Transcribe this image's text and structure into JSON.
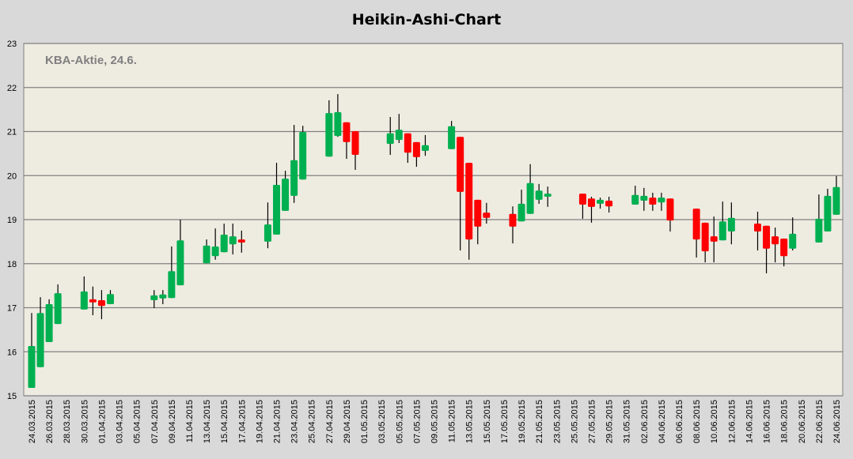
{
  "chart_data": {
    "type": "candlestick",
    "title": "Heikin-Ashi-Chart",
    "annotation": "KBA-Aktie, 24.6.",
    "xlabel": "",
    "ylabel": "",
    "ylim": [
      15,
      23
    ],
    "y_ticks": [
      "15",
      "16",
      "17",
      "18",
      "19",
      "20",
      "21",
      "22",
      "23"
    ],
    "grid": true,
    "colors": {
      "up": "#00b050",
      "down": "#ff0000",
      "wick": "#000000",
      "plot_bg": "#eeebe1",
      "grid": "#808080",
      "page_bg": "#d9d9d9"
    },
    "x_ticks": [
      "24.03.2015",
      "26.03.2015",
      "28.03.2015",
      "30.03.2015",
      "01.04.2015",
      "03.04.2015",
      "05.04.2015",
      "07.04.2015",
      "09.04.2015",
      "11.04.2015",
      "13.04.2015",
      "15.04.2015",
      "17.04.2015",
      "19.04.2015",
      "21.04.2015",
      "23.04.2015",
      "25.04.2015",
      "27.04.2015",
      "29.04.2015",
      "01.05.2015",
      "03.05.2015",
      "05.05.2015",
      "07.05.2015",
      "09.05.2015",
      "11.05.2015",
      "13.05.2015",
      "15.05.2015",
      "17.05.2015",
      "19.05.2015",
      "21.05.2015",
      "23.05.2015",
      "25.05.2015",
      "27.05.2015",
      "29.05.2015",
      "31.05.2015",
      "02.06.2015",
      "04.06.2015",
      "06.06.2015",
      "08.06.2015",
      "10.06.2015",
      "12.06.2015",
      "14.06.2015",
      "16.06.2015",
      "18.06.2015",
      "20.06.2015",
      "22.06.2015",
      "24.06.2015"
    ],
    "candles": [
      {
        "date": "24.03.2015",
        "open": 15.18,
        "high": 16.88,
        "low": 15.18,
        "close": 16.13
      },
      {
        "date": "25.03.2015",
        "open": 15.65,
        "high": 17.24,
        "low": 15.65,
        "close": 16.88
      },
      {
        "date": "26.03.2015",
        "open": 16.22,
        "high": 17.19,
        "low": 16.22,
        "close": 17.08
      },
      {
        "date": "27.03.2015",
        "open": 16.63,
        "high": 17.53,
        "low": 16.63,
        "close": 17.33
      },
      {
        "date": "30.03.2015",
        "open": 16.96,
        "high": 17.71,
        "low": 16.96,
        "close": 17.37
      },
      {
        "date": "31.03.2015",
        "open": 17.19,
        "high": 17.48,
        "low": 16.83,
        "close": 17.12
      },
      {
        "date": "01.04.2015",
        "open": 17.17,
        "high": 17.4,
        "low": 16.74,
        "close": 17.04
      },
      {
        "date": "02.04.2015",
        "open": 17.08,
        "high": 17.4,
        "low": 17.08,
        "close": 17.31
      },
      {
        "date": "07.04.2015",
        "open": 17.17,
        "high": 17.4,
        "low": 16.99,
        "close": 17.28
      },
      {
        "date": "08.04.2015",
        "open": 17.21,
        "high": 17.4,
        "low": 17.08,
        "close": 17.3
      },
      {
        "date": "09.04.2015",
        "open": 17.22,
        "high": 18.39,
        "low": 17.22,
        "close": 17.83
      },
      {
        "date": "10.04.2015",
        "open": 17.51,
        "high": 19.0,
        "low": 17.51,
        "close": 18.53
      },
      {
        "date": "13.04.2015",
        "open": 18.01,
        "high": 18.55,
        "low": 18.01,
        "close": 18.41
      },
      {
        "date": "14.04.2015",
        "open": 18.17,
        "high": 18.8,
        "low": 18.09,
        "close": 18.39
      },
      {
        "date": "15.04.2015",
        "open": 18.26,
        "high": 18.91,
        "low": 18.26,
        "close": 18.66
      },
      {
        "date": "16.04.2015",
        "open": 18.44,
        "high": 18.91,
        "low": 18.21,
        "close": 18.62
      },
      {
        "date": "17.04.2015",
        "open": 18.55,
        "high": 18.75,
        "low": 18.25,
        "close": 18.48
      },
      {
        "date": "20.04.2015",
        "open": 18.5,
        "high": 19.39,
        "low": 18.35,
        "close": 18.89
      },
      {
        "date": "21.04.2015",
        "open": 18.66,
        "high": 20.29,
        "low": 18.66,
        "close": 19.79
      },
      {
        "date": "22.04.2015",
        "open": 19.2,
        "high": 20.11,
        "low": 19.2,
        "close": 19.93
      },
      {
        "date": "23.04.2015",
        "open": 19.54,
        "high": 21.15,
        "low": 19.38,
        "close": 20.35
      },
      {
        "date": "24.04.2015",
        "open": 19.91,
        "high": 21.13,
        "low": 19.91,
        "close": 20.99
      },
      {
        "date": "27.04.2015",
        "open": 20.43,
        "high": 21.71,
        "low": 20.43,
        "close": 21.42
      },
      {
        "date": "28.04.2015",
        "open": 20.9,
        "high": 21.85,
        "low": 20.88,
        "close": 21.44
      },
      {
        "date": "29.04.2015",
        "open": 21.21,
        "high": 21.21,
        "low": 20.38,
        "close": 20.76
      },
      {
        "date": "30.04.2015",
        "open": 21.01,
        "high": 21.01,
        "low": 20.13,
        "close": 20.47
      },
      {
        "date": "04.05.2015",
        "open": 20.72,
        "high": 21.33,
        "low": 20.47,
        "close": 20.96
      },
      {
        "date": "05.05.2015",
        "open": 20.81,
        "high": 21.4,
        "low": 20.74,
        "close": 21.04
      },
      {
        "date": "06.05.2015",
        "open": 20.96,
        "high": 20.96,
        "low": 20.29,
        "close": 20.52
      },
      {
        "date": "07.05.2015",
        "open": 20.76,
        "high": 20.76,
        "low": 20.2,
        "close": 20.42
      },
      {
        "date": "08.05.2015",
        "open": 20.56,
        "high": 20.92,
        "low": 20.45,
        "close": 20.69
      },
      {
        "date": "11.05.2015",
        "open": 20.6,
        "high": 21.24,
        "low": 20.6,
        "close": 21.12
      },
      {
        "date": "12.05.2015",
        "open": 20.88,
        "high": 20.88,
        "low": 18.3,
        "close": 19.63
      },
      {
        "date": "13.05.2015",
        "open": 20.29,
        "high": 20.29,
        "low": 18.09,
        "close": 18.55
      },
      {
        "date": "14.05.2015",
        "open": 19.45,
        "high": 19.45,
        "low": 18.44,
        "close": 18.84
      },
      {
        "date": "15.05.2015",
        "open": 19.16,
        "high": 19.38,
        "low": 18.91,
        "close": 19.04
      },
      {
        "date": "18.05.2015",
        "open": 19.13,
        "high": 19.3,
        "low": 18.46,
        "close": 18.84
      },
      {
        "date": "19.05.2015",
        "open": 18.96,
        "high": 19.68,
        "low": 18.96,
        "close": 19.36
      },
      {
        "date": "20.05.2015",
        "open": 19.13,
        "high": 20.26,
        "low": 19.13,
        "close": 19.83
      },
      {
        "date": "21.05.2015",
        "open": 19.45,
        "high": 19.81,
        "low": 19.36,
        "close": 19.66
      },
      {
        "date": "22.05.2015",
        "open": 19.52,
        "high": 19.75,
        "low": 19.29,
        "close": 19.59
      },
      {
        "date": "26.05.2015",
        "open": 19.59,
        "high": 19.59,
        "low": 19.02,
        "close": 19.34
      },
      {
        "date": "27.05.2015",
        "open": 19.48,
        "high": 19.52,
        "low": 18.93,
        "close": 19.29
      },
      {
        "date": "28.05.2015",
        "open": 19.36,
        "high": 19.5,
        "low": 19.25,
        "close": 19.45
      },
      {
        "date": "29.05.2015",
        "open": 19.43,
        "high": 19.52,
        "low": 19.16,
        "close": 19.3
      },
      {
        "date": "01.06.2015",
        "open": 19.34,
        "high": 19.77,
        "low": 19.34,
        "close": 19.56
      },
      {
        "date": "02.06.2015",
        "open": 19.43,
        "high": 19.72,
        "low": 19.2,
        "close": 19.54
      },
      {
        "date": "03.06.2015",
        "open": 19.5,
        "high": 19.61,
        "low": 19.2,
        "close": 19.34
      },
      {
        "date": "04.06.2015",
        "open": 19.39,
        "high": 19.61,
        "low": 19.2,
        "close": 19.5
      },
      {
        "date": "05.06.2015",
        "open": 19.48,
        "high": 19.48,
        "low": 18.73,
        "close": 18.98
      },
      {
        "date": "08.06.2015",
        "open": 19.25,
        "high": 19.25,
        "low": 18.14,
        "close": 18.55
      },
      {
        "date": "09.06.2015",
        "open": 18.93,
        "high": 18.93,
        "low": 18.03,
        "close": 18.28
      },
      {
        "date": "10.06.2015",
        "open": 18.62,
        "high": 19.07,
        "low": 18.03,
        "close": 18.5
      },
      {
        "date": "11.06.2015",
        "open": 18.53,
        "high": 19.41,
        "low": 18.53,
        "close": 18.96
      },
      {
        "date": "12.06.2015",
        "open": 18.73,
        "high": 19.39,
        "low": 18.44,
        "close": 19.04
      },
      {
        "date": "15.06.2015",
        "open": 18.91,
        "high": 19.18,
        "low": 18.3,
        "close": 18.73
      },
      {
        "date": "16.06.2015",
        "open": 18.86,
        "high": 18.86,
        "low": 17.78,
        "close": 18.34
      },
      {
        "date": "17.06.2015",
        "open": 18.62,
        "high": 18.82,
        "low": 18.03,
        "close": 18.44
      },
      {
        "date": "18.06.2015",
        "open": 18.57,
        "high": 18.57,
        "low": 17.94,
        "close": 18.17
      },
      {
        "date": "19.06.2015",
        "open": 18.34,
        "high": 19.05,
        "low": 18.3,
        "close": 18.68
      },
      {
        "date": "22.06.2015",
        "open": 18.48,
        "high": 19.57,
        "low": 18.48,
        "close": 19.02
      },
      {
        "date": "23.06.2015",
        "open": 18.73,
        "high": 19.7,
        "low": 18.73,
        "close": 19.54
      },
      {
        "date": "24.06.2015",
        "open": 19.11,
        "high": 19.99,
        "low": 19.11,
        "close": 19.74
      }
    ]
  }
}
